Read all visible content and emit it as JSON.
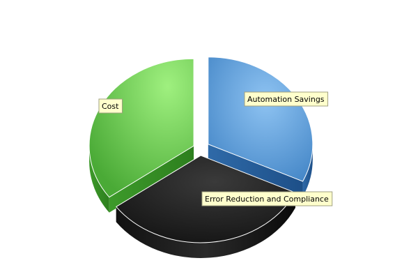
{
  "chart_data": {
    "type": "pie",
    "style": "3d-exploded",
    "title": "",
    "legend": "none",
    "slices": [
      {
        "label": "Automation Savings",
        "value": 32,
        "color": "#5b9bd5"
      },
      {
        "label": "Error Reduction and Compliance",
        "value": 33,
        "color": "#1a1a1a"
      },
      {
        "label": "Cost",
        "value": 35,
        "color": "#5cc44a"
      }
    ]
  }
}
